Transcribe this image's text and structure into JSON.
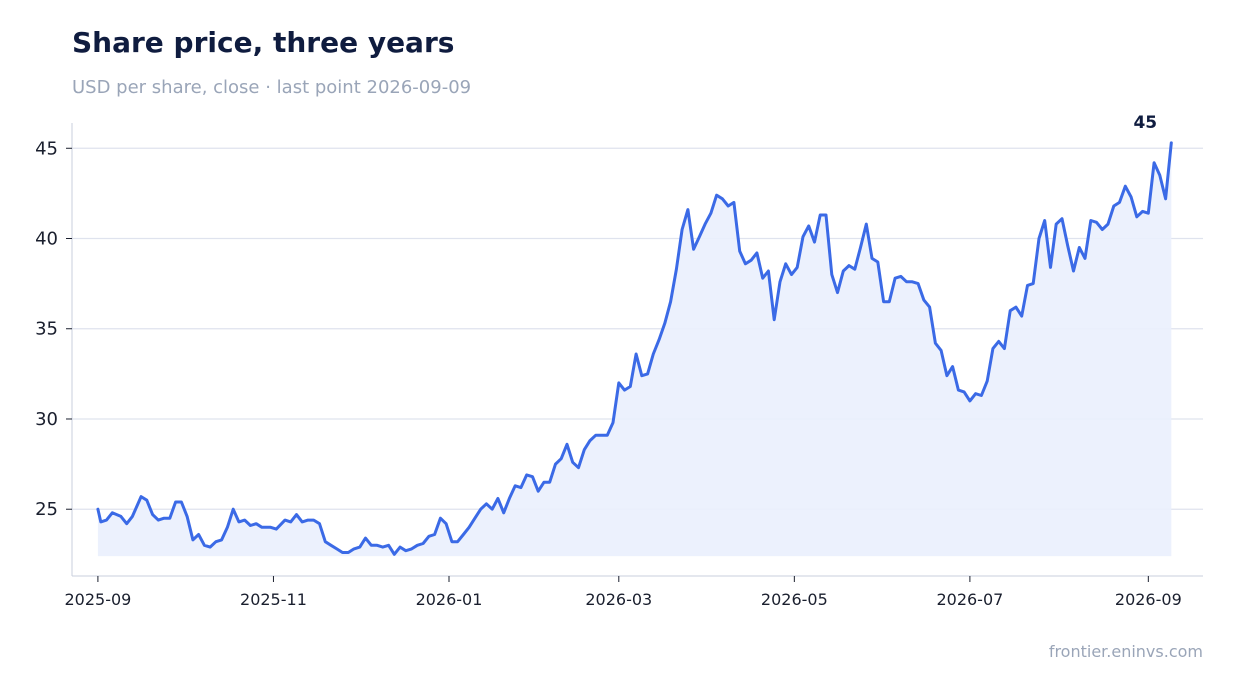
{
  "chart_data": {
    "type": "line",
    "title": "Share price, three years",
    "subtitle": "USD per share, close · last point 2026-09-09",
    "source": "frontier.eninvs.com",
    "ylim": [
      21.3,
      46.4
    ],
    "yticks": [
      25,
      30,
      35,
      40,
      45
    ],
    "xlim": [
      "2025-08-23",
      "2026-09-20"
    ],
    "xticks": [
      "2025-09",
      "2025-11",
      "2026-01",
      "2026-03",
      "2026-05",
      "2026-07",
      "2026-09"
    ],
    "grid": "horizontal",
    "area_fill": true,
    "area_baseline": 22.4,
    "end_label": "45",
    "line_color": "#3b6ae6",
    "fill_color": "#eaf0fd",
    "series": [
      {
        "values": [
          [
            "2025-09-01",
            25.0
          ],
          [
            "2025-09-02",
            24.3
          ],
          [
            "2025-09-04",
            24.4
          ],
          [
            "2025-09-06",
            24.8
          ],
          [
            "2025-09-09",
            24.6
          ],
          [
            "2025-09-11",
            24.2
          ],
          [
            "2025-09-13",
            24.6
          ],
          [
            "2025-09-16",
            25.7
          ],
          [
            "2025-09-18",
            25.5
          ],
          [
            "2025-09-20",
            24.7
          ],
          [
            "2025-09-22",
            24.4
          ],
          [
            "2025-09-24",
            24.5
          ],
          [
            "2025-09-26",
            24.5
          ],
          [
            "2025-09-28",
            25.4
          ],
          [
            "2025-09-30",
            25.4
          ],
          [
            "2025-10-02",
            24.6
          ],
          [
            "2025-10-04",
            23.3
          ],
          [
            "2025-10-06",
            23.6
          ],
          [
            "2025-10-08",
            23.0
          ],
          [
            "2025-10-10",
            22.9
          ],
          [
            "2025-10-12",
            23.2
          ],
          [
            "2025-10-14",
            23.3
          ],
          [
            "2025-10-16",
            24.0
          ],
          [
            "2025-10-18",
            25.0
          ],
          [
            "2025-10-20",
            24.3
          ],
          [
            "2025-10-22",
            24.4
          ],
          [
            "2025-10-24",
            24.1
          ],
          [
            "2025-10-26",
            24.2
          ],
          [
            "2025-10-28",
            24.0
          ],
          [
            "2025-10-31",
            24.0
          ],
          [
            "2025-11-02",
            23.9
          ],
          [
            "2025-11-05",
            24.4
          ],
          [
            "2025-11-07",
            24.3
          ],
          [
            "2025-11-09",
            24.7
          ],
          [
            "2025-11-11",
            24.3
          ],
          [
            "2025-11-13",
            24.4
          ],
          [
            "2025-11-15",
            24.4
          ],
          [
            "2025-11-17",
            24.2
          ],
          [
            "2025-11-19",
            23.2
          ],
          [
            "2025-11-21",
            23.0
          ],
          [
            "2025-11-23",
            22.8
          ],
          [
            "2025-11-25",
            22.6
          ],
          [
            "2025-11-27",
            22.6
          ],
          [
            "2025-11-29",
            22.8
          ],
          [
            "2025-12-01",
            22.9
          ],
          [
            "2025-12-03",
            23.4
          ],
          [
            "2025-12-05",
            23.0
          ],
          [
            "2025-12-07",
            23.0
          ],
          [
            "2025-12-09",
            22.9
          ],
          [
            "2025-12-11",
            23.0
          ],
          [
            "2025-12-13",
            22.5
          ],
          [
            "2025-12-15",
            22.9
          ],
          [
            "2025-12-17",
            22.7
          ],
          [
            "2025-12-19",
            22.8
          ],
          [
            "2025-12-21",
            23.0
          ],
          [
            "2025-12-23",
            23.1
          ],
          [
            "2025-12-25",
            23.5
          ],
          [
            "2025-12-27",
            23.6
          ],
          [
            "2025-12-29",
            24.5
          ],
          [
            "2025-12-31",
            24.2
          ],
          [
            "2026-01-02",
            23.2
          ],
          [
            "2026-01-04",
            23.2
          ],
          [
            "2026-01-06",
            23.6
          ],
          [
            "2026-01-08",
            24.0
          ],
          [
            "2026-01-10",
            24.5
          ],
          [
            "2026-01-12",
            25.0
          ],
          [
            "2026-01-14",
            25.3
          ],
          [
            "2026-01-16",
            25.0
          ],
          [
            "2026-01-18",
            25.6
          ],
          [
            "2026-01-20",
            24.8
          ],
          [
            "2026-01-22",
            25.6
          ],
          [
            "2026-01-24",
            26.3
          ],
          [
            "2026-01-26",
            26.2
          ],
          [
            "2026-01-28",
            26.9
          ],
          [
            "2026-01-30",
            26.8
          ],
          [
            "2026-02-01",
            26.0
          ],
          [
            "2026-02-03",
            26.5
          ],
          [
            "2026-02-05",
            26.5
          ],
          [
            "2026-02-07",
            27.5
          ],
          [
            "2026-02-09",
            27.8
          ],
          [
            "2026-02-11",
            28.6
          ],
          [
            "2026-02-13",
            27.6
          ],
          [
            "2026-02-15",
            27.3
          ],
          [
            "2026-02-17",
            28.3
          ],
          [
            "2026-02-19",
            28.8
          ],
          [
            "2026-02-21",
            29.1
          ],
          [
            "2026-02-23",
            29.1
          ],
          [
            "2026-02-25",
            29.1
          ],
          [
            "2026-02-27",
            29.8
          ],
          [
            "2026-03-01",
            32.0
          ],
          [
            "2026-03-03",
            31.6
          ],
          [
            "2026-03-05",
            31.8
          ],
          [
            "2026-03-07",
            33.6
          ],
          [
            "2026-03-09",
            32.4
          ],
          [
            "2026-03-11",
            32.5
          ],
          [
            "2026-03-13",
            33.6
          ],
          [
            "2026-03-15",
            34.4
          ],
          [
            "2026-03-17",
            35.3
          ],
          [
            "2026-03-19",
            36.5
          ],
          [
            "2026-03-21",
            38.3
          ],
          [
            "2026-03-23",
            40.5
          ],
          [
            "2026-03-25",
            41.6
          ],
          [
            "2026-03-27",
            39.4
          ],
          [
            "2026-03-29",
            40.1
          ],
          [
            "2026-03-31",
            40.8
          ],
          [
            "2026-04-02",
            41.4
          ],
          [
            "2026-04-04",
            42.4
          ],
          [
            "2026-04-06",
            42.2
          ],
          [
            "2026-04-08",
            41.8
          ],
          [
            "2026-04-10",
            42.0
          ],
          [
            "2026-04-12",
            39.3
          ],
          [
            "2026-04-14",
            38.6
          ],
          [
            "2026-04-16",
            38.8
          ],
          [
            "2026-04-18",
            39.2
          ],
          [
            "2026-04-20",
            37.8
          ],
          [
            "2026-04-22",
            38.2
          ],
          [
            "2026-04-24",
            35.5
          ],
          [
            "2026-04-26",
            37.6
          ],
          [
            "2026-04-28",
            38.6
          ],
          [
            "2026-04-30",
            38.0
          ],
          [
            "2026-05-02",
            38.4
          ],
          [
            "2026-05-04",
            40.1
          ],
          [
            "2026-05-06",
            40.7
          ],
          [
            "2026-05-08",
            39.8
          ],
          [
            "2026-05-10",
            41.3
          ],
          [
            "2026-05-12",
            41.3
          ],
          [
            "2026-05-14",
            38.0
          ],
          [
            "2026-05-16",
            37.0
          ],
          [
            "2026-05-18",
            38.2
          ],
          [
            "2026-05-20",
            38.5
          ],
          [
            "2026-05-22",
            38.3
          ],
          [
            "2026-05-24",
            39.5
          ],
          [
            "2026-05-26",
            40.8
          ],
          [
            "2026-05-28",
            38.9
          ],
          [
            "2026-05-30",
            38.7
          ],
          [
            "2026-06-01",
            36.5
          ],
          [
            "2026-06-03",
            36.5
          ],
          [
            "2026-06-05",
            37.8
          ],
          [
            "2026-06-07",
            37.9
          ],
          [
            "2026-06-09",
            37.6
          ],
          [
            "2026-06-11",
            37.6
          ],
          [
            "2026-06-13",
            37.5
          ],
          [
            "2026-06-15",
            36.6
          ],
          [
            "2026-06-17",
            36.2
          ],
          [
            "2026-06-19",
            34.2
          ],
          [
            "2026-06-21",
            33.8
          ],
          [
            "2026-06-23",
            32.4
          ],
          [
            "2026-06-25",
            32.9
          ],
          [
            "2026-06-27",
            31.6
          ],
          [
            "2026-06-29",
            31.5
          ],
          [
            "2026-07-01",
            31.0
          ],
          [
            "2026-07-03",
            31.4
          ],
          [
            "2026-07-05",
            31.3
          ],
          [
            "2026-07-07",
            32.1
          ],
          [
            "2026-07-09",
            33.9
          ],
          [
            "2026-07-11",
            34.3
          ],
          [
            "2026-07-13",
            33.9
          ],
          [
            "2026-07-15",
            36.0
          ],
          [
            "2026-07-17",
            36.2
          ],
          [
            "2026-07-19",
            35.7
          ],
          [
            "2026-07-21",
            37.4
          ],
          [
            "2026-07-23",
            37.5
          ],
          [
            "2026-07-25",
            40.0
          ],
          [
            "2026-07-27",
            41.0
          ],
          [
            "2026-07-29",
            38.4
          ],
          [
            "2026-07-31",
            40.8
          ],
          [
            "2026-08-02",
            41.1
          ],
          [
            "2026-08-04",
            39.6
          ],
          [
            "2026-08-06",
            38.2
          ],
          [
            "2026-08-08",
            39.5
          ],
          [
            "2026-08-10",
            38.9
          ],
          [
            "2026-08-12",
            41.0
          ],
          [
            "2026-08-14",
            40.9
          ],
          [
            "2026-08-16",
            40.5
          ],
          [
            "2026-08-18",
            40.8
          ],
          [
            "2026-08-20",
            41.8
          ],
          [
            "2026-08-22",
            42.0
          ],
          [
            "2026-08-24",
            42.9
          ],
          [
            "2026-08-26",
            42.3
          ],
          [
            "2026-08-28",
            41.2
          ],
          [
            "2026-08-30",
            41.5
          ],
          [
            "2026-09-01",
            41.4
          ],
          [
            "2026-09-03",
            44.2
          ],
          [
            "2026-09-05",
            43.5
          ],
          [
            "2026-09-07",
            42.2
          ],
          [
            "2026-09-09",
            45.3
          ]
        ]
      }
    ]
  }
}
